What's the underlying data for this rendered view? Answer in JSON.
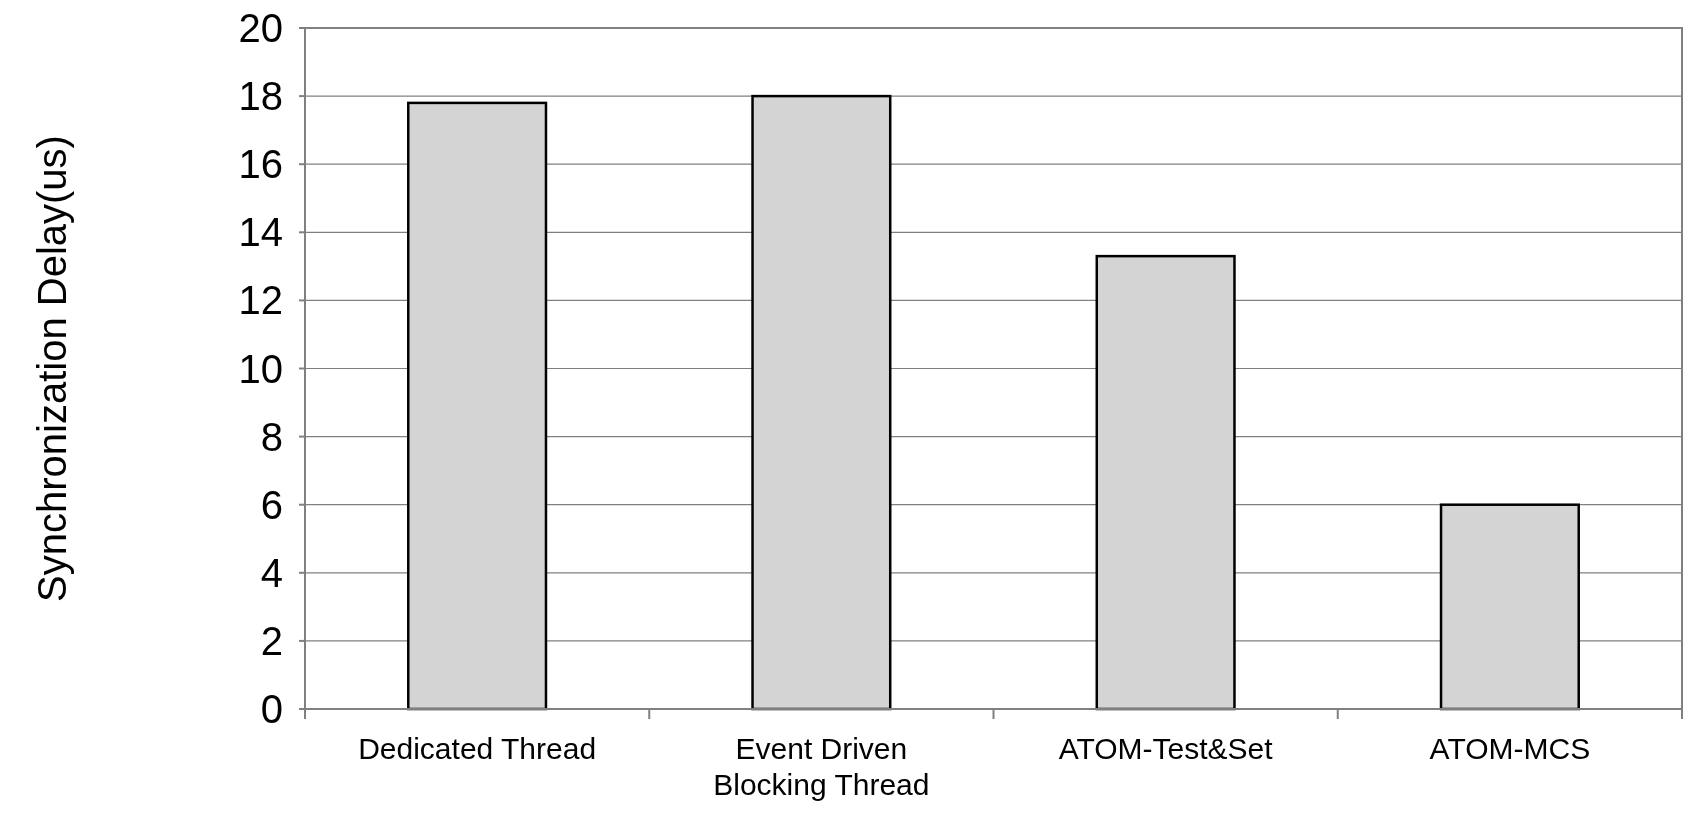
{
  "chart_data": {
    "type": "bar",
    "ylabel": "Synchronization Delay(us)",
    "categories": [
      "Dedicated Thread",
      "Event Driven Blocking Thread",
      "ATOM-Test&Set",
      "ATOM-MCS"
    ],
    "values": [
      17.8,
      18.0,
      13.3,
      6.0
    ],
    "color": "#d4d4d4",
    "ylim": [
      0,
      20
    ],
    "yticks": [
      0,
      2,
      4,
      6,
      8,
      10,
      12,
      14,
      16,
      18,
      20
    ],
    "grid": "y"
  }
}
